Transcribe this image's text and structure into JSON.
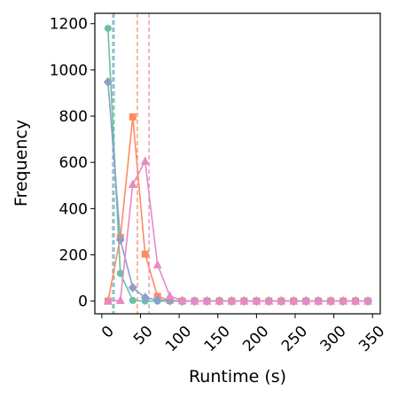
{
  "chart_data": {
    "type": "line",
    "title": "",
    "xlabel": "Runtime (s)",
    "ylabel": "Frequency",
    "xlim": [
      -9,
      360
    ],
    "ylim": [
      -55,
      1245
    ],
    "xticks": [
      0,
      50,
      100,
      150,
      200,
      250,
      300,
      350
    ],
    "yticks": [
      0,
      200,
      400,
      600,
      800,
      1000,
      1200
    ],
    "grid": false,
    "legend": "none",
    "series": [
      {
        "color": "#66c2a5",
        "marker": "circle",
        "x": [
          8,
          24,
          40,
          56,
          72,
          88,
          104,
          120,
          136,
          152,
          168,
          184,
          200,
          216,
          232,
          248,
          264,
          280,
          296,
          312,
          328,
          344
        ],
        "values": [
          1180,
          120,
          3,
          0,
          0,
          0,
          0,
          0,
          0,
          0,
          0,
          0,
          0,
          0,
          0,
          0,
          0,
          0,
          0,
          0,
          0,
          0
        ],
        "vline": 16
      },
      {
        "color": "#fc8d62",
        "marker": "square",
        "x": [
          8,
          24,
          40,
          56,
          72,
          88,
          104,
          120,
          136,
          152,
          168,
          184,
          200,
          216,
          232,
          248,
          264,
          280,
          296,
          312,
          328,
          344
        ],
        "values": [
          0,
          275,
          797,
          203,
          20,
          3,
          0,
          0,
          0,
          0,
          0,
          0,
          0,
          0,
          0,
          0,
          0,
          0,
          0,
          0,
          0,
          0
        ],
        "vline": 46
      },
      {
        "color": "#8da0cb",
        "marker": "diamond",
        "x": [
          8,
          24,
          40,
          56,
          72,
          88,
          104,
          120,
          136,
          152,
          168,
          184,
          200,
          216,
          232,
          248,
          264,
          280,
          296,
          312,
          328,
          344
        ],
        "values": [
          948,
          265,
          58,
          15,
          5,
          2,
          0,
          0,
          0,
          0,
          0,
          0,
          0,
          0,
          0,
          0,
          0,
          0,
          0,
          0,
          0,
          0
        ],
        "vline": 14
      },
      {
        "color": "#e78ac3",
        "marker": "triangle",
        "x": [
          8,
          24,
          40,
          56,
          72,
          88,
          104,
          120,
          136,
          152,
          168,
          184,
          200,
          216,
          232,
          248,
          264,
          280,
          296,
          312,
          328,
          344
        ],
        "values": [
          0,
          3,
          505,
          605,
          157,
          22,
          3,
          0,
          0,
          0,
          0,
          0,
          0,
          0,
          0,
          0,
          0,
          0,
          0,
          0,
          0,
          0
        ],
        "vline": 61
      }
    ]
  }
}
